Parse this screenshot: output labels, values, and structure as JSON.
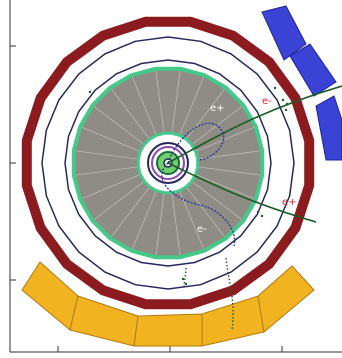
{
  "labels": {
    "e_plus_inner": "e+",
    "e_minus_top": "e-",
    "e_plus_right": "e+",
    "e_minus_lower": "e-"
  },
  "colors": {
    "muon_ring": "#8c1b20",
    "calorimeter": "#8e8c84",
    "calorimeter_edge": "#44c98a",
    "support_ring": "#27275c",
    "tracks_electron": "#155c24",
    "tracks_positron": "#2b2b9b",
    "endcap_blue": "#3a43d6",
    "endcap_yellow": "#f2b321",
    "axis": "#333333",
    "label_red": "#d2202a",
    "label_white": "#ffffff"
  }
}
